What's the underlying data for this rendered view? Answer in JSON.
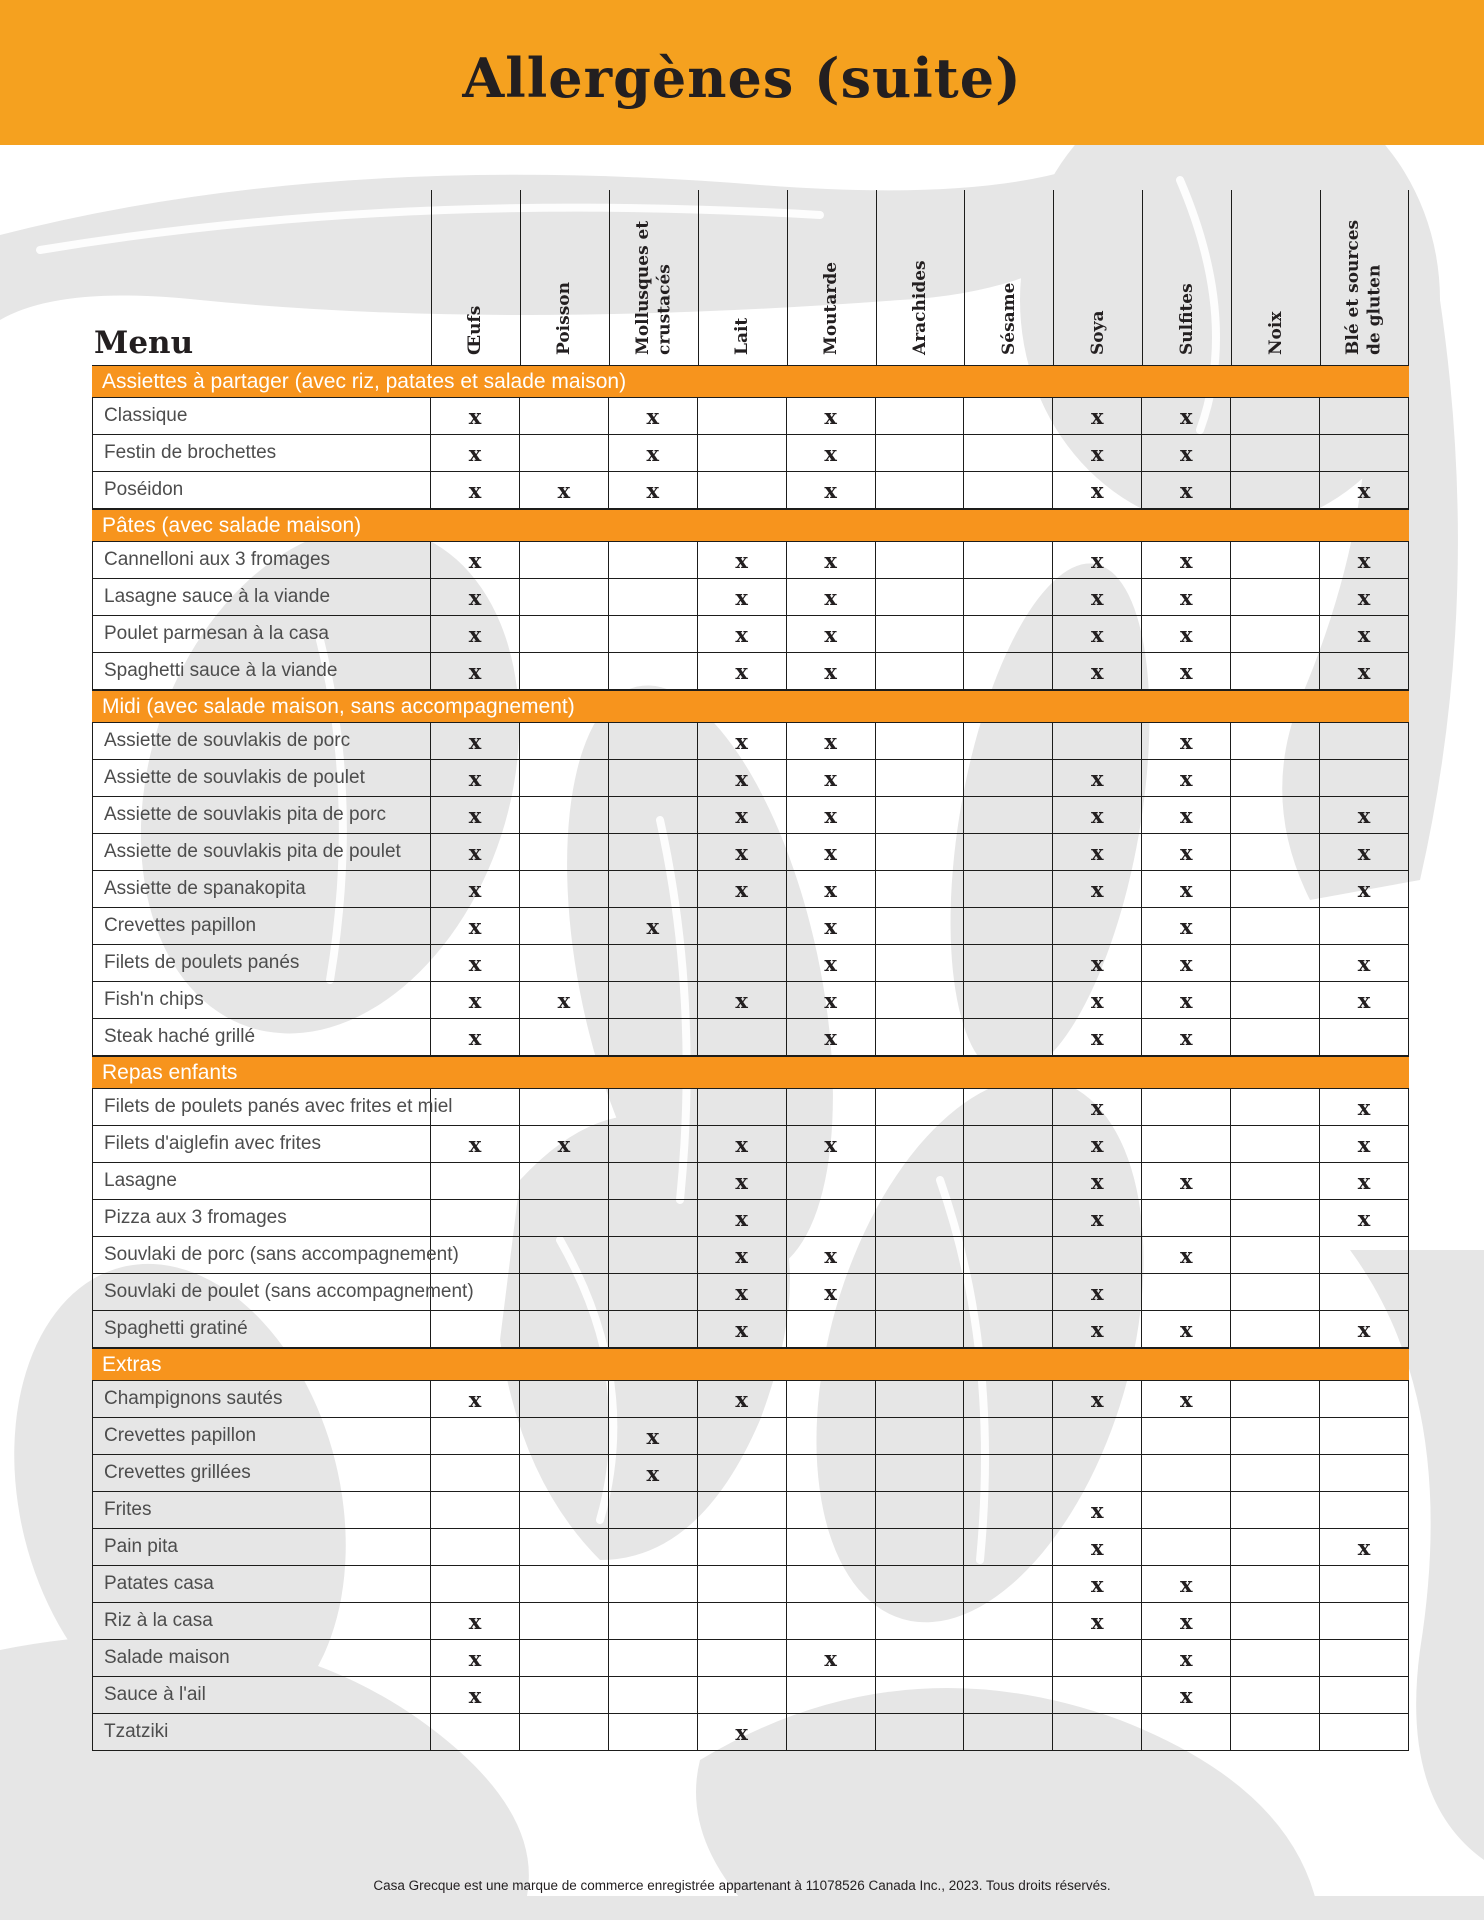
{
  "page": {
    "title": "Allergènes (suite)",
    "footer": "Casa Grecque est une marque de commerce enregistrée appartenant à 11078526 Canada Inc., 2023. Tous droits réservés."
  },
  "colors": {
    "title_band_orange": "#F5A11F",
    "section_band_orange": "#F7941D",
    "ink": "#231F20",
    "row_label_gray": "#4D4D4D",
    "artwork_gray": "#E6E6E6",
    "band_text_white": "#FFFFFF"
  },
  "table": {
    "menu_header": "Menu",
    "mark_glyph": "x",
    "columns": [
      "Œufs",
      "Poisson",
      "Mollusques et crustacés",
      "Lait",
      "Moutarde",
      "Arachides",
      "Sésame",
      "Soya",
      "Sulfites",
      "Noix",
      "Blé et sources de gluten"
    ],
    "sections": [
      {
        "title": "Assiettes à partager (avec riz, patates et salade maison)",
        "rows": [
          {
            "label": "Classique",
            "marks": [
              1,
              0,
              1,
              0,
              1,
              0,
              0,
              1,
              1,
              0,
              0
            ]
          },
          {
            "label": "Festin de brochettes",
            "marks": [
              1,
              0,
              1,
              0,
              1,
              0,
              0,
              1,
              1,
              0,
              0
            ]
          },
          {
            "label": "Poséidon",
            "marks": [
              1,
              1,
              1,
              0,
              1,
              0,
              0,
              1,
              1,
              0,
              1
            ]
          }
        ]
      },
      {
        "title": "Pâtes (avec salade maison)",
        "rows": [
          {
            "label": "Cannelloni aux 3 fromages",
            "marks": [
              1,
              0,
              0,
              1,
              1,
              0,
              0,
              1,
              1,
              0,
              1
            ]
          },
          {
            "label": "Lasagne sauce à la viande",
            "marks": [
              1,
              0,
              0,
              1,
              1,
              0,
              0,
              1,
              1,
              0,
              1
            ]
          },
          {
            "label": "Poulet parmesan à la casa",
            "marks": [
              1,
              0,
              0,
              1,
              1,
              0,
              0,
              1,
              1,
              0,
              1
            ]
          },
          {
            "label": "Spaghetti sauce à la viande",
            "marks": [
              1,
              0,
              0,
              1,
              1,
              0,
              0,
              1,
              1,
              0,
              1
            ]
          }
        ]
      },
      {
        "title": "Midi (avec salade maison, sans accompagnement)",
        "rows": [
          {
            "label": "Assiette de souvlakis de porc",
            "marks": [
              1,
              0,
              0,
              1,
              1,
              0,
              0,
              0,
              1,
              0,
              0
            ]
          },
          {
            "label": "Assiette de souvlakis de poulet",
            "marks": [
              1,
              0,
              0,
              1,
              1,
              0,
              0,
              1,
              1,
              0,
              0
            ]
          },
          {
            "label": "Assiette de souvlakis pita de porc",
            "marks": [
              1,
              0,
              0,
              1,
              1,
              0,
              0,
              1,
              1,
              0,
              1
            ]
          },
          {
            "label": "Assiette de souvlakis pita de poulet",
            "marks": [
              1,
              0,
              0,
              1,
              1,
              0,
              0,
              1,
              1,
              0,
              1
            ]
          },
          {
            "label": "Assiette de spanakopita",
            "marks": [
              1,
              0,
              0,
              1,
              1,
              0,
              0,
              1,
              1,
              0,
              1
            ]
          },
          {
            "label": "Crevettes papillon",
            "marks": [
              1,
              0,
              1,
              0,
              1,
              0,
              0,
              0,
              1,
              0,
              0
            ]
          },
          {
            "label": "Filets de poulets panés",
            "marks": [
              1,
              0,
              0,
              0,
              1,
              0,
              0,
              1,
              1,
              0,
              1
            ]
          },
          {
            "label": "Fish'n chips",
            "marks": [
              1,
              1,
              0,
              1,
              1,
              0,
              0,
              1,
              1,
              0,
              1
            ]
          },
          {
            "label": "Steak haché grillé",
            "marks": [
              1,
              0,
              0,
              0,
              1,
              0,
              0,
              1,
              1,
              0,
              0
            ]
          }
        ]
      },
      {
        "title": "Repas enfants",
        "rows": [
          {
            "label": "Filets de poulets panés avec frites et miel",
            "marks": [
              0,
              0,
              0,
              0,
              0,
              0,
              0,
              1,
              0,
              0,
              1
            ]
          },
          {
            "label": "Filets d'aiglefin avec frites",
            "marks": [
              1,
              1,
              0,
              1,
              1,
              0,
              0,
              1,
              0,
              0,
              1
            ]
          },
          {
            "label": "Lasagne",
            "marks": [
              0,
              0,
              0,
              1,
              0,
              0,
              0,
              1,
              1,
              0,
              1
            ]
          },
          {
            "label": "Pizza aux 3 fromages",
            "marks": [
              0,
              0,
              0,
              1,
              0,
              0,
              0,
              1,
              0,
              0,
              1
            ]
          },
          {
            "label": "Souvlaki de porc (sans accompagnement)",
            "marks": [
              0,
              0,
              0,
              1,
              1,
              0,
              0,
              0,
              1,
              0,
              0
            ]
          },
          {
            "label": "Souvlaki de poulet (sans accompagnement)",
            "marks": [
              0,
              0,
              0,
              1,
              1,
              0,
              0,
              1,
              0,
              0,
              0
            ]
          },
          {
            "label": "Spaghetti gratiné",
            "marks": [
              0,
              0,
              0,
              1,
              0,
              0,
              0,
              1,
              1,
              0,
              1
            ]
          }
        ]
      },
      {
        "title": "Extras",
        "rows": [
          {
            "label": "Champignons sautés",
            "marks": [
              1,
              0,
              0,
              1,
              0,
              0,
              0,
              1,
              1,
              0,
              0
            ]
          },
          {
            "label": "Crevettes papillon",
            "marks": [
              0,
              0,
              1,
              0,
              0,
              0,
              0,
              0,
              0,
              0,
              0
            ]
          },
          {
            "label": "Crevettes grillées",
            "marks": [
              0,
              0,
              1,
              0,
              0,
              0,
              0,
              0,
              0,
              0,
              0
            ]
          },
          {
            "label": "Frites",
            "marks": [
              0,
              0,
              0,
              0,
              0,
              0,
              0,
              1,
              0,
              0,
              0
            ]
          },
          {
            "label": "Pain pita",
            "marks": [
              0,
              0,
              0,
              0,
              0,
              0,
              0,
              1,
              0,
              0,
              1
            ]
          },
          {
            "label": "Patates casa",
            "marks": [
              0,
              0,
              0,
              0,
              0,
              0,
              0,
              1,
              1,
              0,
              0
            ]
          },
          {
            "label": "Riz à la casa",
            "marks": [
              1,
              0,
              0,
              0,
              0,
              0,
              0,
              1,
              1,
              0,
              0
            ]
          },
          {
            "label": "Salade maison",
            "marks": [
              1,
              0,
              0,
              0,
              1,
              0,
              0,
              0,
              1,
              0,
              0
            ]
          },
          {
            "label": "Sauce à l'ail",
            "marks": [
              1,
              0,
              0,
              0,
              0,
              0,
              0,
              0,
              1,
              0,
              0
            ]
          },
          {
            "label": "Tzatziki",
            "marks": [
              0,
              0,
              0,
              1,
              0,
              0,
              0,
              0,
              0,
              0,
              0
            ]
          }
        ]
      }
    ]
  }
}
